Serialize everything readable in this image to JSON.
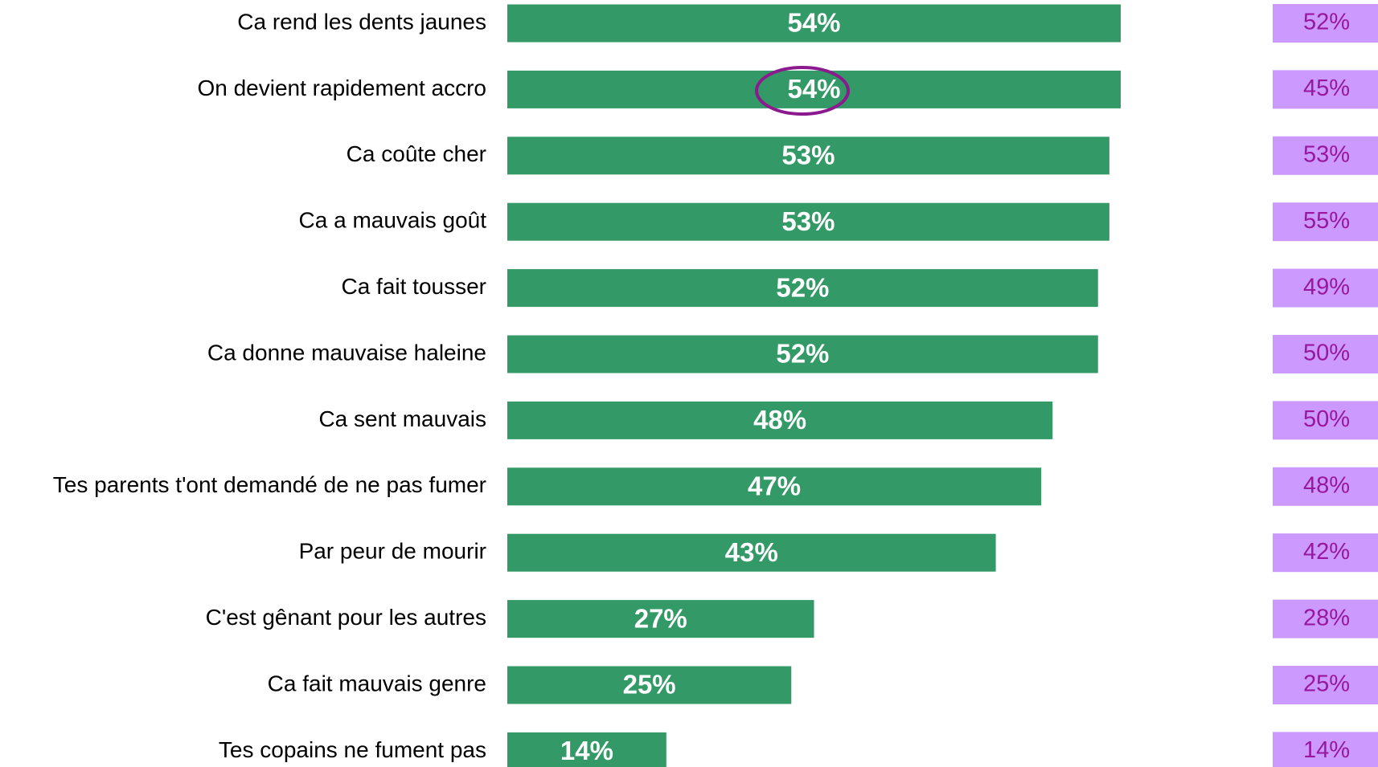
{
  "chart_data": {
    "type": "bar",
    "orientation": "horizontal",
    "categories": [
      "Ca rend les dents jaunes",
      "On devient rapidement accro",
      "Ca coûte cher",
      "Ca a mauvais goût",
      "Ca fait tousser",
      "Ca donne mauvaise haleine",
      "Ca sent mauvais",
      "Tes parents t'ont demandé de ne pas fumer",
      "Par peur de mourir",
      "C'est gênant pour les autres",
      "Ca fait mauvais genre",
      "Tes copains ne fument pas"
    ],
    "series": [
      {
        "color": "#339966",
        "values": [
          54,
          54,
          53,
          53,
          52,
          52,
          48,
          47,
          43,
          27,
          25,
          14
        ],
        "value_labels": [
          "54%",
          "54%",
          "53%",
          "53%",
          "52%",
          "52%",
          "48%",
          "47%",
          "43%",
          "27%",
          "25%",
          "14%"
        ]
      },
      {
        "color": "#cc99ff",
        "values": [
          52,
          45,
          53,
          55,
          49,
          50,
          50,
          48,
          42,
          28,
          25,
          14
        ],
        "value_labels": [
          "52%",
          "45%",
          "53%",
          "55%",
          "49%",
          "50%",
          "50%",
          "48%",
          "42%",
          "28%",
          "25%",
          "14%"
        ]
      }
    ]
  }
}
